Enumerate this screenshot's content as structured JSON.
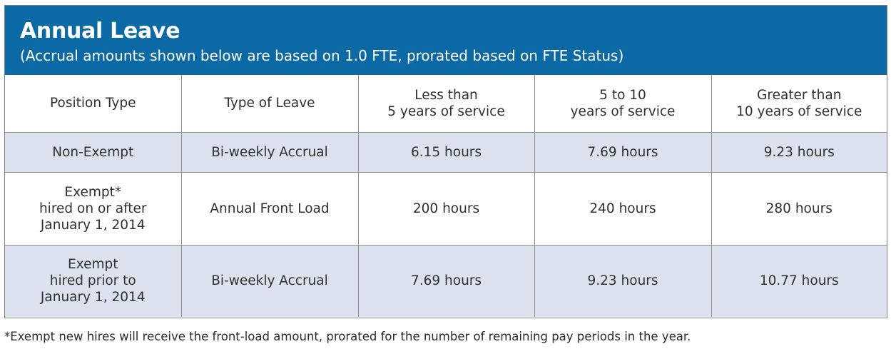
{
  "banner": {
    "title": "Annual Leave",
    "subtitle": "(Accrual amounts shown below are based on 1.0 FTE, prorated based on FTE Status)"
  },
  "table": {
    "headers": [
      [
        "Position Type"
      ],
      [
        "Type of Leave"
      ],
      [
        "Less than",
        "5 years of service"
      ],
      [
        "5 to 10",
        "years of service"
      ],
      [
        "Greater than",
        "10 years of service"
      ]
    ],
    "rows": [
      {
        "position_type": [
          "Non-Exempt"
        ],
        "type_of_leave": "Bi-weekly Accrual",
        "less_than_5": "6.15 hours",
        "five_to_10": "7.69 hours",
        "greater_than_10": "9.23 hours"
      },
      {
        "position_type": [
          "Exempt*",
          "hired on or after",
          "January 1, 2014"
        ],
        "type_of_leave": "Annual Front Load",
        "less_than_5": "200 hours",
        "five_to_10": "240 hours",
        "greater_than_10": "280 hours"
      },
      {
        "position_type": [
          "Exempt",
          "hired prior to",
          "January 1, 2014"
        ],
        "type_of_leave": "Bi-weekly Accrual",
        "less_than_5": "7.69 hours",
        "five_to_10": "9.23 hours",
        "greater_than_10": "10.77 hours"
      }
    ]
  },
  "footnote": "*Exempt new hires will receive the front-load amount, prorated for the number of remaining pay periods in the year.",
  "colors": {
    "banner_background": "#0b6aa5",
    "shaded_row": "#dce3ee",
    "border": "#8c8c8c"
  }
}
